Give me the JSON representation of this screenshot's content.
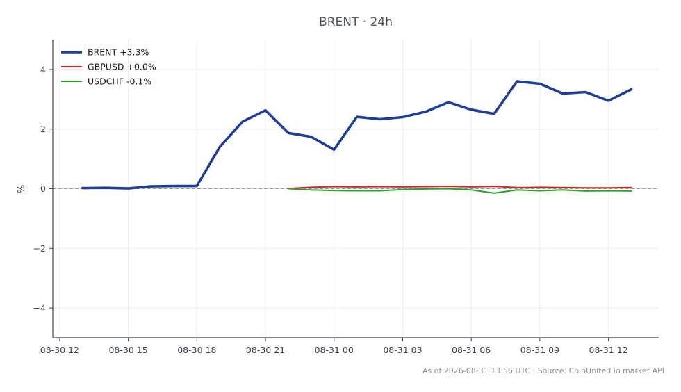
{
  "chart_data": {
    "type": "line",
    "title": "BRENT · 24h",
    "xlabel": "",
    "ylabel": "%",
    "ylim": [
      -5,
      5
    ],
    "y_ticks": [
      -4,
      -2,
      0,
      2,
      4
    ],
    "y_tick_labels": [
      "−4",
      "−2",
      "0",
      "2",
      "4"
    ],
    "x_range_hours": [
      -0.3,
      26.2
    ],
    "x_ticks": [
      {
        "h": 0,
        "label": "08-30 12"
      },
      {
        "h": 3,
        "label": "08-30 15"
      },
      {
        "h": 6,
        "label": "08-30 18"
      },
      {
        "h": 9,
        "label": "08-30 21"
      },
      {
        "h": 12,
        "label": "08-31 00"
      },
      {
        "h": 15,
        "label": "08-31 03"
      },
      {
        "h": 18,
        "label": "08-31 06"
      },
      {
        "h": 21,
        "label": "08-31 09"
      },
      {
        "h": 24,
        "label": "08-31 12"
      }
    ],
    "zero_line": true,
    "grid": true,
    "legend_position": "top-left",
    "series": [
      {
        "name": "BRENT +3.3%",
        "color": "#1f3f96",
        "x": [
          1,
          2,
          3,
          4,
          5,
          6,
          7,
          8,
          9,
          10,
          11,
          12,
          13,
          14,
          15,
          16,
          17,
          18,
          19,
          20,
          21,
          22,
          23,
          24,
          25
        ],
        "values": [
          0.02,
          0.03,
          0.01,
          0.08,
          0.09,
          0.09,
          1.4,
          2.25,
          2.63,
          1.87,
          1.74,
          1.31,
          2.41,
          2.33,
          2.4,
          2.58,
          2.9,
          2.65,
          2.51,
          3.6,
          3.52,
          3.19,
          3.24,
          2.95,
          3.33
        ]
      },
      {
        "name": "GBPUSD +0.0%",
        "color": "#d62728",
        "x": [
          10,
          11,
          12,
          13,
          14,
          15,
          16,
          17,
          18,
          19,
          20,
          21,
          22,
          23,
          24,
          25
        ],
        "values": [
          0.01,
          0.05,
          0.07,
          0.06,
          0.07,
          0.06,
          0.07,
          0.08,
          0.06,
          0.08,
          0.04,
          0.05,
          0.04,
          0.03,
          0.03,
          0.04
        ]
      },
      {
        "name": "USDCHF -0.1%",
        "color": "#2ca02c",
        "x": [
          10,
          11,
          12,
          13,
          14,
          15,
          16,
          17,
          18,
          19,
          20,
          21,
          22,
          23,
          24,
          25
        ],
        "values": [
          0.0,
          -0.04,
          -0.06,
          -0.07,
          -0.07,
          -0.03,
          -0.01,
          0.0,
          -0.04,
          -0.15,
          -0.04,
          -0.07,
          -0.04,
          -0.08,
          -0.07,
          -0.08
        ]
      }
    ]
  },
  "footer": "As of 2026-08-31 13:56 UTC · Source: CoinUnited.io market API"
}
